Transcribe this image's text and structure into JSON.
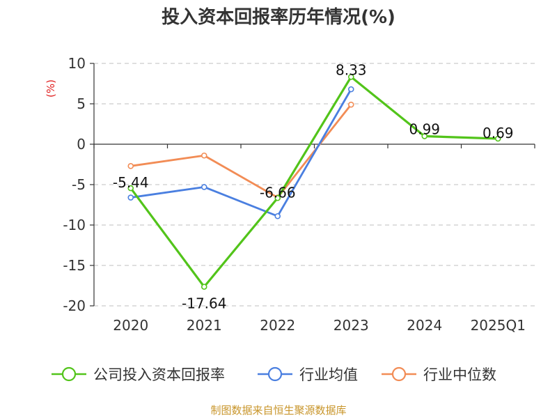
{
  "chart_data": {
    "type": "line",
    "title": "投入资本回报率历年情况(%)",
    "ylabel": "(%)",
    "ylim": [
      -20,
      10
    ],
    "yticks": [
      10,
      5,
      0,
      -5,
      -10,
      -15,
      -20
    ],
    "categories": [
      "2020",
      "2021",
      "2022",
      "2023",
      "2024",
      "2025Q1"
    ],
    "grid": true,
    "legend_position": "bottom",
    "series": [
      {
        "name": "公司投入资本回报率",
        "color": "#52c41a",
        "values": [
          -5.44,
          -17.64,
          -6.66,
          8.33,
          0.99,
          0.69
        ],
        "data_labels": [
          "-5.44",
          "-17.64",
          "-6.66",
          "8.33",
          "0.99",
          "0.69"
        ]
      },
      {
        "name": "行业均值",
        "color": "#4a7fe0",
        "values": [
          -6.6,
          -5.3,
          -8.9,
          6.8,
          null,
          null
        ]
      },
      {
        "name": "行业中位数",
        "color": "#f28c55",
        "values": [
          -2.7,
          -1.4,
          -6.6,
          4.9,
          null,
          null
        ]
      }
    ],
    "unit_color": "#e02020",
    "source": "制图数据来自恒生聚源数据库",
    "source_color": "#c8952a"
  }
}
